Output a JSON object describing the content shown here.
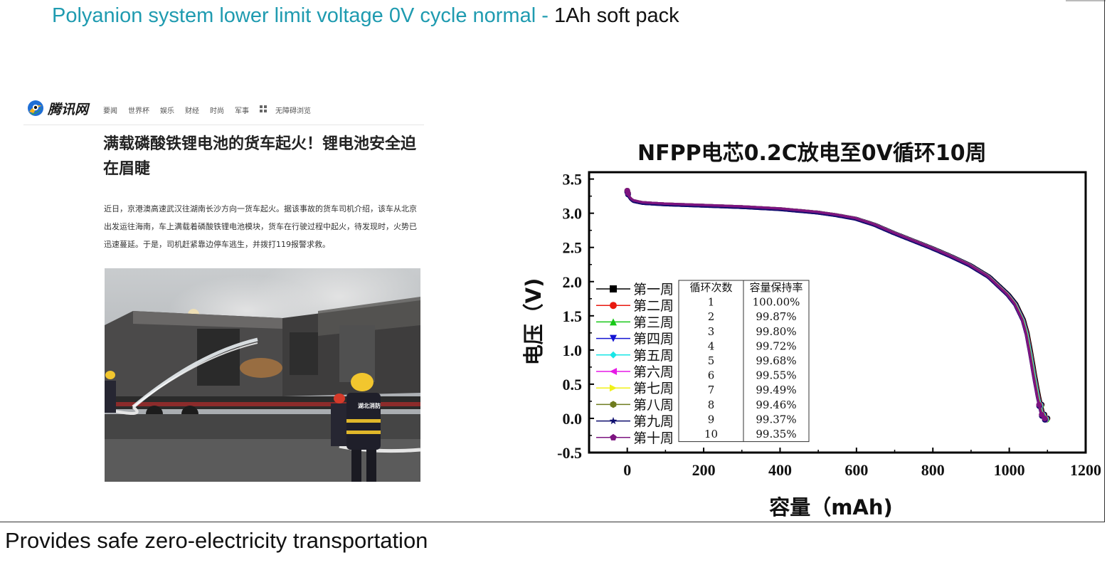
{
  "slide": {
    "title_blue": "Polyanion system lower limit voltage 0V cycle normal - ",
    "title_black": "1Ah soft pack",
    "bottom_caption": "Provides safe zero-electricity transportation"
  },
  "news": {
    "logo": "腾讯网",
    "nav": [
      "要闻",
      "世界杯",
      "娱乐",
      "财经",
      "时尚",
      "军事",
      "无障碍浏览"
    ],
    "headline": "满载磷酸铁锂电池的货车起火！锂电池安全迫在眉睫",
    "body": "近日，京港澳高速武汉往湖南长沙方向一货车起火。据该事故的货车司机介绍，该车从北京出发运往海南，车上满载着磷酸铁锂电池模块，货车在行驶过程中起火，待发现时，火势已迅速蔓延。于是，司机赶紧靠边停车逃生，并拨打119报警求救。",
    "photo_sign": "湖北消防"
  },
  "chart_data": {
    "type": "line",
    "title": "NFPP电芯0.2C放电至0V循环10周",
    "xlabel": "容量（mAh)",
    "ylabel": "电压（V)",
    "xlim": [
      -100,
      1200
    ],
    "ylim": [
      -0.5,
      3.6
    ],
    "xticks": [
      "0",
      "200",
      "400",
      "600",
      "800",
      "1000",
      "1200"
    ],
    "yticks": [
      "-0.5",
      "0.0",
      "0.5",
      "1.0",
      "1.5",
      "2.0",
      "2.5",
      "3.0",
      "3.5"
    ],
    "base_curve": {
      "x": [
        0,
        5,
        15,
        40,
        100,
        200,
        300,
        400,
        500,
        550,
        600,
        650,
        700,
        750,
        800,
        850,
        900,
        950,
        1000,
        1020,
        1040,
        1050,
        1060,
        1070,
        1080,
        1090,
        1095,
        1100
      ],
      "y": [
        3.33,
        3.24,
        3.19,
        3.16,
        3.14,
        3.12,
        3.1,
        3.07,
        3.02,
        2.98,
        2.93,
        2.84,
        2.72,
        2.61,
        2.5,
        2.38,
        2.25,
        2.08,
        1.82,
        1.68,
        1.45,
        1.25,
        0.95,
        0.62,
        0.32,
        0.08,
        0.02,
        0.0
      ]
    },
    "series": [
      {
        "name": "第一周",
        "color": "#000000",
        "marker": "square",
        "capacity_scale": 1.0
      },
      {
        "name": "第二周",
        "color": "#e8190f",
        "marker": "circle",
        "capacity_scale": 0.9987
      },
      {
        "name": "第三周",
        "color": "#18c818",
        "marker": "triangle-up",
        "capacity_scale": 0.998
      },
      {
        "name": "第四周",
        "color": "#1414d2",
        "marker": "triangle-down",
        "capacity_scale": 0.9972
      },
      {
        "name": "第五周",
        "color": "#19e6e6",
        "marker": "diamond",
        "capacity_scale": 0.9968
      },
      {
        "name": "第六周",
        "color": "#e619e6",
        "marker": "triangle-left",
        "capacity_scale": 0.9955
      },
      {
        "name": "第七周",
        "color": "#f0f019",
        "marker": "triangle-right",
        "capacity_scale": 0.9949
      },
      {
        "name": "第八周",
        "color": "#6e7b1e",
        "marker": "hexagon",
        "capacity_scale": 0.9946
      },
      {
        "name": "第九周",
        "color": "#0e0e6e",
        "marker": "star",
        "capacity_scale": 0.9937
      },
      {
        "name": "第十周",
        "color": "#7d1480",
        "marker": "pentagon",
        "capacity_scale": 0.9935
      }
    ],
    "table": {
      "headers": [
        "循环次数",
        "容量保持率"
      ],
      "rows": [
        [
          "1",
          "100.00%"
        ],
        [
          "2",
          "99.87%"
        ],
        [
          "3",
          "99.80%"
        ],
        [
          "4",
          "99.72%"
        ],
        [
          "5",
          "99.68%"
        ],
        [
          "6",
          "99.55%"
        ],
        [
          "7",
          "99.49%"
        ],
        [
          "8",
          "99.46%"
        ],
        [
          "9",
          "99.37%"
        ],
        [
          "10",
          "99.35%"
        ]
      ]
    },
    "legend_position": "lower-left",
    "grid": false
  }
}
